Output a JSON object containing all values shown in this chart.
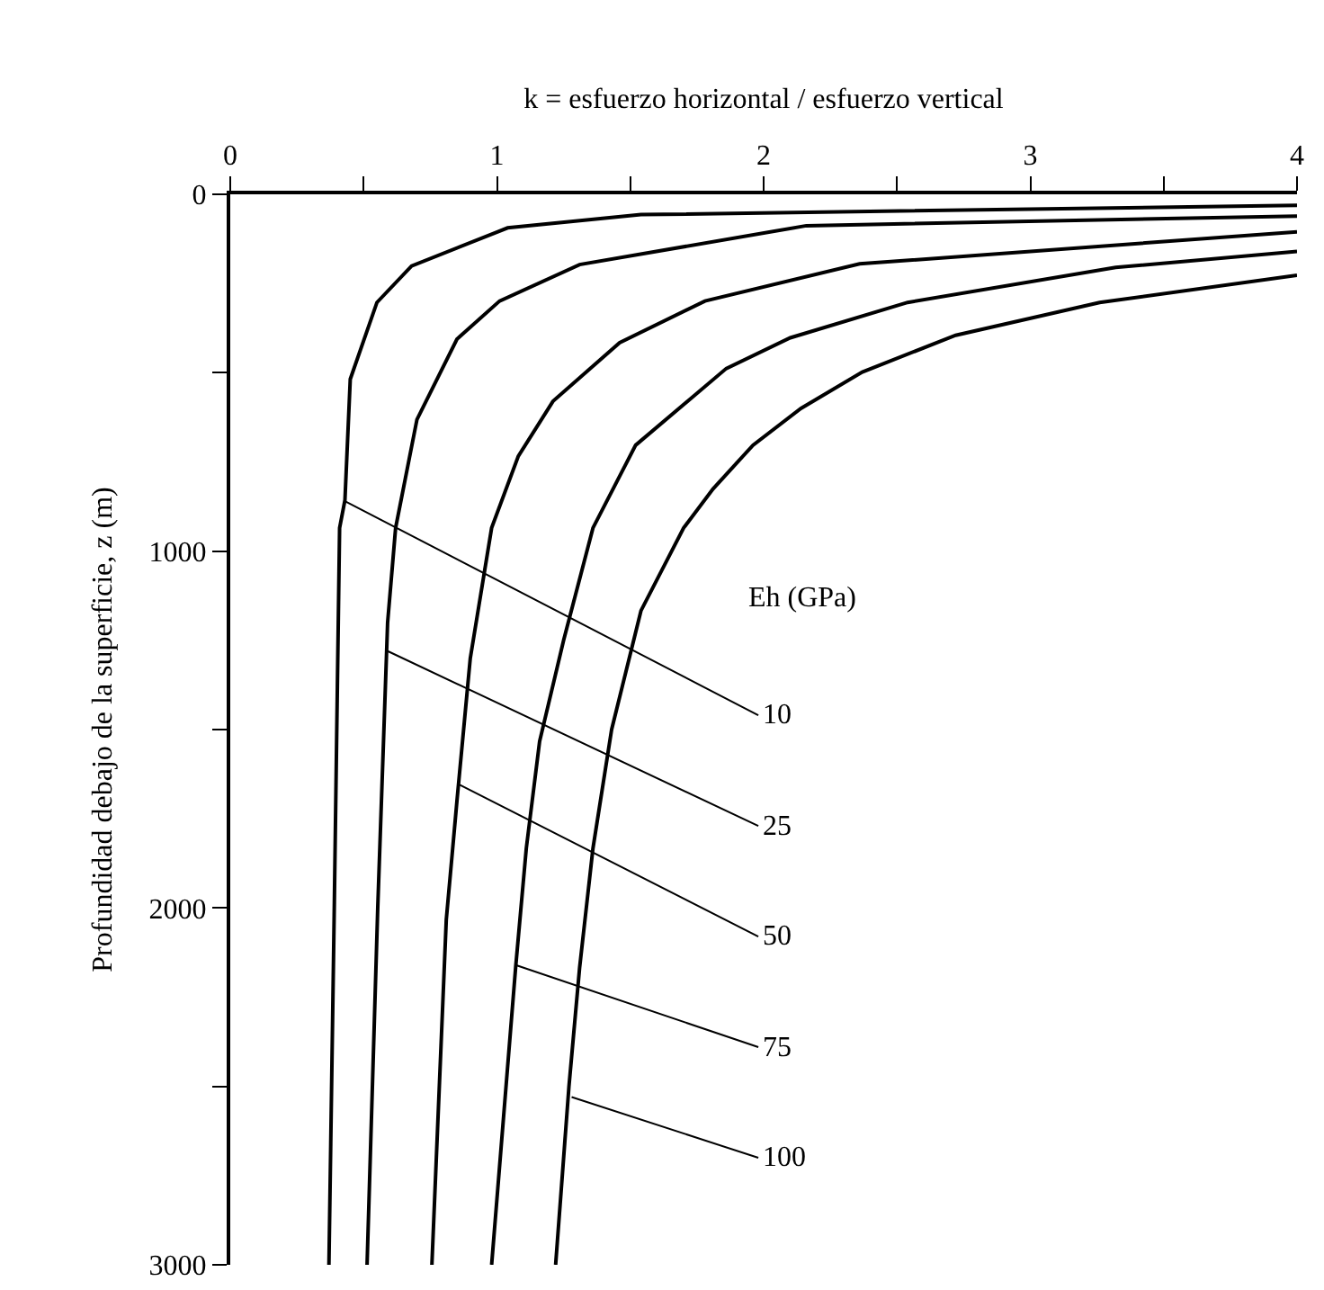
{
  "chart_data": {
    "type": "line",
    "xlabel": "k = esfuerzo horizontal / esfuerzo vertical",
    "ylabel": "Profundidad debajo de la superficie, z (m)",
    "legend_title": "Eh (GPa)",
    "xlim": [
      0,
      4
    ],
    "xticks": [
      0,
      {
        "value": 0.5,
        "label": null
      },
      1,
      {
        "value": 1.5,
        "label": null
      },
      2,
      {
        "value": 2.5,
        "label": null
      },
      3,
      {
        "value": 3.5,
        "label": null
      },
      4
    ],
    "ylim": [
      3000,
      0
    ],
    "yticks": [
      0,
      {
        "value": 500,
        "label": null
      },
      1000,
      {
        "value": 1500,
        "label": null
      },
      2000,
      {
        "value": 2500,
        "label": null
      },
      3000
    ],
    "grid": false,
    "marker": "none",
    "line_style": "solid",
    "series": [
      {
        "color": "#000000",
        "x": [
          4,
          1.54,
          1.04,
          0.68,
          0.55,
          0.45,
          0.43,
          0.41,
          0.39,
          0.37
        ],
        "values": [
          31,
          57,
          94,
          201,
          303,
          518,
          857,
          935,
          2000,
          3000
        ]
      },
      {
        "color": "#000000",
        "x": [
          4,
          2.16,
          1.31,
          1.01,
          0.85,
          0.7,
          0.62,
          0.59,
          0.553,
          0.513
        ],
        "values": [
          61,
          88,
          197,
          299,
          406,
          631,
          935,
          1200,
          2000,
          3000
        ]
      },
      {
        "color": "#000000",
        "x": [
          4,
          2.36,
          1.78,
          1.46,
          1.21,
          1.08,
          0.98,
          0.9,
          0.85,
          0.81,
          0.756
        ],
        "values": [
          105,
          195,
          299,
          416,
          580,
          734,
          935,
          1300,
          1700,
          2033,
          3000
        ]
      },
      {
        "color": "#000000",
        "x": [
          4,
          3.32,
          2.54,
          2.1,
          1.86,
          1.52,
          1.36,
          1.25,
          1.16,
          1.11,
          1.07,
          0.98
        ],
        "values": [
          160,
          205,
          303,
          402,
          488,
          703,
          935,
          1250,
          1533,
          1833,
          2167,
          3000
        ]
      },
      {
        "color": "#000000",
        "x": [
          4,
          3.26,
          2.72,
          2.37,
          2.14,
          1.96,
          1.81,
          1.7,
          1.54,
          1.43,
          1.36,
          1.31,
          1.27,
          1.22
        ],
        "values": [
          227,
          303,
          395,
          498,
          600,
          703,
          826,
          935,
          1167,
          1500,
          1833,
          2167,
          2500,
          3000
        ]
      }
    ],
    "annotations": [
      {
        "text": "10",
        "x": 0.43,
        "y": 860
      },
      {
        "text": "25",
        "x": 0.59,
        "y": 1280
      },
      {
        "text": "50",
        "x": 0.86,
        "y": 1655
      },
      {
        "text": "75",
        "x": 1.07,
        "y": 2160
      },
      {
        "text": "100",
        "x": 1.28,
        "y": 2530
      }
    ]
  }
}
